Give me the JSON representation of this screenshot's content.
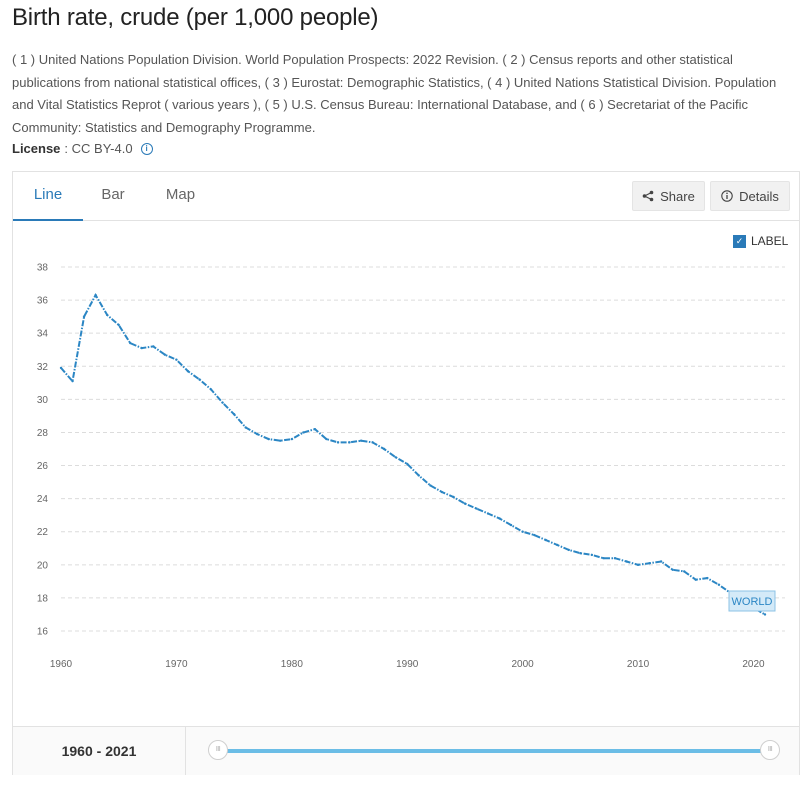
{
  "header": {
    "title": "Birth rate, crude (per 1,000 people)",
    "sources": "( 1 ) United Nations Population Division. World Population Prospects: 2022 Revision. ( 2 ) Census reports and other statistical publications from national statistical offices, ( 3 ) Eurostat: Demographic Statistics, ( 4 ) United Nations Statistical Division. Population and Vital Statistics Reprot ( various years ), ( 5 ) U.S. Census Bureau: International Database, and ( 6 ) Secretariat of the Pacific Community: Statistics and Demography Programme.",
    "license_label": "License",
    "license_value": ": CC BY-4.0"
  },
  "tabs": [
    {
      "label": "Line",
      "active": true
    },
    {
      "label": "Bar",
      "active": false
    },
    {
      "label": "Map",
      "active": false
    }
  ],
  "toolbar": {
    "share_label": "Share",
    "details_label": "Details"
  },
  "label_toggle": {
    "text": "LABEL",
    "checked": true
  },
  "footer": {
    "range_start": "1960",
    "range_sep": " - ",
    "range_end": "2021"
  },
  "icons": {
    "share": "share-icon",
    "details": "info-icon",
    "license_info": "info-icon"
  },
  "colors": {
    "accent": "#2a7ab8",
    "series": "#2b86c4",
    "slider": "#6bbde6"
  },
  "chart_data": {
    "type": "line",
    "title": "",
    "xlabel": "",
    "ylabel": "",
    "xlim": [
      1960,
      2021
    ],
    "ylim": [
      16,
      38
    ],
    "y_ticks": [
      16,
      18,
      20,
      22,
      24,
      26,
      28,
      30,
      32,
      34,
      36,
      38
    ],
    "x_ticks": [
      1960,
      1970,
      1980,
      1990,
      2000,
      2010,
      2020
    ],
    "grid": true,
    "series": [
      {
        "name": "WORLD",
        "x": [
          1960,
          1961,
          1962,
          1963,
          1964,
          1965,
          1966,
          1967,
          1968,
          1969,
          1970,
          1971,
          1972,
          1973,
          1974,
          1975,
          1976,
          1977,
          1978,
          1979,
          1980,
          1981,
          1982,
          1983,
          1984,
          1985,
          1986,
          1987,
          1988,
          1989,
          1990,
          1991,
          1992,
          1993,
          1994,
          1995,
          1996,
          1997,
          1998,
          1999,
          2000,
          2001,
          2002,
          2003,
          2004,
          2005,
          2006,
          2007,
          2008,
          2009,
          2010,
          2011,
          2012,
          2013,
          2014,
          2015,
          2016,
          2017,
          2018,
          2019,
          2020,
          2021
        ],
        "y": [
          31.9,
          31.1,
          35.0,
          36.3,
          35.1,
          34.5,
          33.4,
          33.1,
          33.2,
          32.7,
          32.4,
          31.7,
          31.2,
          30.6,
          29.8,
          29.1,
          28.3,
          27.9,
          27.6,
          27.5,
          27.6,
          28.0,
          28.2,
          27.6,
          27.4,
          27.4,
          27.5,
          27.4,
          27.0,
          26.5,
          26.1,
          25.4,
          24.8,
          24.4,
          24.1,
          23.7,
          23.4,
          23.1,
          22.8,
          22.4,
          22.0,
          21.8,
          21.5,
          21.2,
          20.9,
          20.7,
          20.6,
          20.4,
          20.4,
          20.2,
          20.0,
          20.1,
          20.2,
          19.7,
          19.6,
          19.1,
          19.2,
          18.8,
          18.3,
          17.9,
          17.4,
          17.0
        ]
      }
    ]
  }
}
